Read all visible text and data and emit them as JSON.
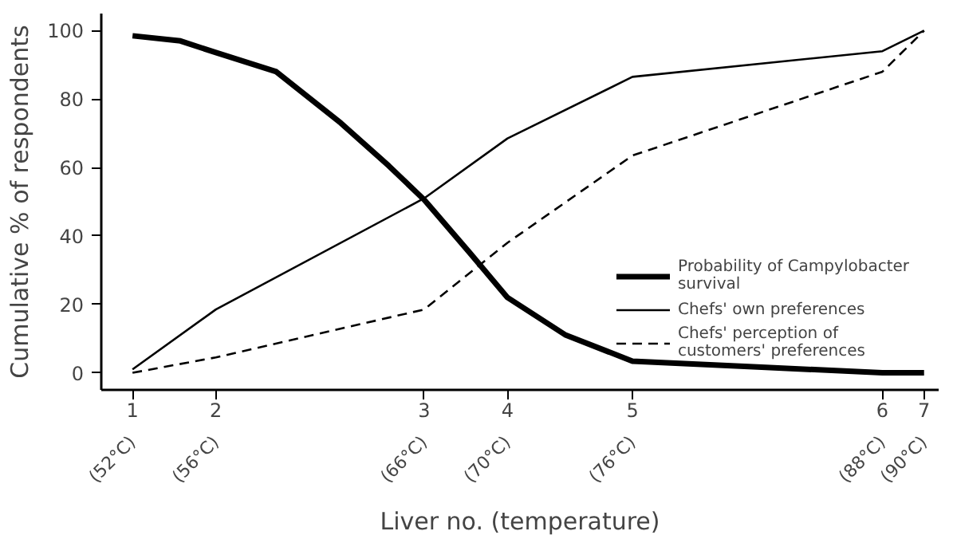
{
  "chart_data": {
    "type": "line",
    "xlabel": "Liver no. (temperature)",
    "ylabel": "Cumulative % of respondents",
    "xlim": [
      50.5,
      90.7
    ],
    "ylim": [
      -5,
      105
    ],
    "xticks": [
      {
        "value": 52,
        "label": "(52°C)"
      },
      {
        "value": 56,
        "label": "(56°C)"
      },
      {
        "value": 66,
        "label": "(66°C)"
      },
      {
        "value": 70,
        "label": "(70°C)"
      },
      {
        "value": 76,
        "label": "(76°C)"
      },
      {
        "value": 88,
        "label": "(88°C)"
      },
      {
        "value": 90,
        "label": "(90°C)"
      }
    ],
    "annotations": [
      "1",
      "2",
      "3",
      "4",
      "5",
      "6",
      "7"
    ],
    "yticks": [
      0,
      20,
      40,
      60,
      80,
      100
    ],
    "grid": false,
    "legend": "bottom right",
    "marker": "none",
    "series": [
      {
        "name": "Probability of Campylobacter survival",
        "color": "#000000",
        "line_style": "solid",
        "x": [
          52,
          54.3,
          56,
          58.9,
          62,
          64.3,
          66,
          68.2,
          70,
          72.8,
          76,
          82,
          88,
          90
        ],
        "values": [
          98.5,
          97,
          93.6,
          88,
          73,
          60.5,
          50.6,
          35,
          22,
          11,
          3.4,
          1.7,
          0,
          0
        ]
      },
      {
        "name": "Chefs' own preferences",
        "color": "#000000",
        "line_style": "solid",
        "x": [
          52,
          56,
          66,
          70,
          76,
          88,
          90
        ],
        "values": [
          1,
          18.5,
          51,
          68.5,
          86.5,
          94,
          100
        ]
      },
      {
        "name": "Chefs' perception of customers' preferences",
        "color": "#000000",
        "line_style": "dashed",
        "x": [
          52,
          56,
          66,
          70,
          76,
          88,
          90
        ],
        "values": [
          0,
          4.5,
          18.5,
          38,
          63.5,
          88,
          100
        ]
      }
    ]
  }
}
